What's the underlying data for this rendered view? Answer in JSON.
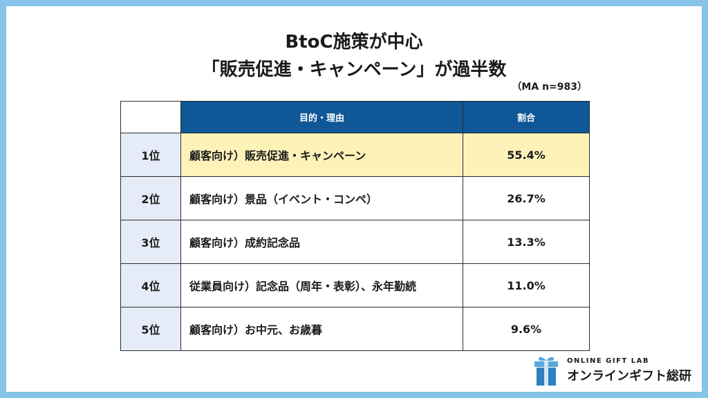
{
  "title": {
    "line1": "BtoC施策が中心",
    "line2": "「販売促進・キャンペーン」が過半数"
  },
  "note": "（MA n=983）",
  "colors": {
    "header_bg": "#0f5796",
    "rank_bg": "#e5ecf7",
    "highlight_bg": "#fdf2b8",
    "frame": "#86c3e8"
  },
  "chart_data": {
    "type": "table",
    "columns": [
      "目的・理由",
      "割合"
    ],
    "rows": [
      {
        "rank": "1位",
        "item": "顧客向け）販売促進・キャンペーン",
        "value": "55.4%"
      },
      {
        "rank": "2位",
        "item": "顧客向け）景品（イベント・コンペ）",
        "value": "26.7%"
      },
      {
        "rank": "3位",
        "item": "顧客向け）成約記念品",
        "value": "13.3%"
      },
      {
        "rank": "4位",
        "item": "従業員向け）記念品（周年・表彰）、永年勤続",
        "value": "11.0%"
      },
      {
        "rank": "5位",
        "item": "顧客向け）お中元、お歳暮",
        "value": "9.6%"
      }
    ]
  },
  "logo": {
    "en": "ONLINE GIFT LAB",
    "jp": "オンラインギフト総研",
    "icon": "gift-box-icon"
  }
}
